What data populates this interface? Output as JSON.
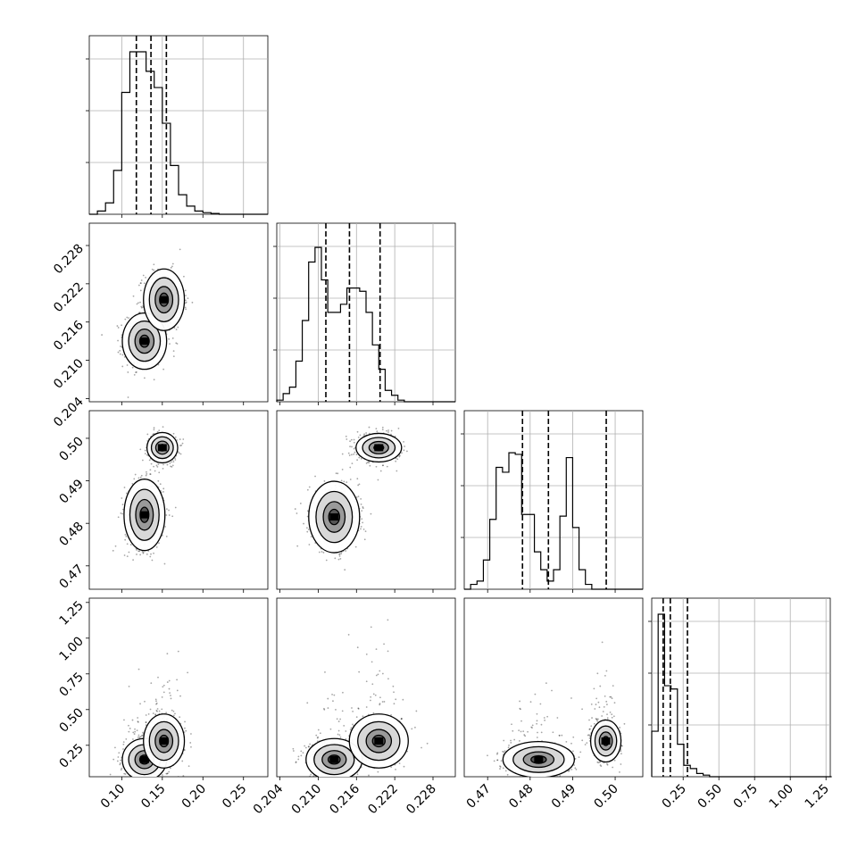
{
  "chart_data": [
    {
      "type": "histogram",
      "panel": "p1-marginal",
      "x_range": [
        0.06,
        0.28
      ],
      "grid": true,
      "bin_edges_start": 0.06,
      "bin_width": 0.01,
      "counts": [
        0.0,
        0.02,
        0.07,
        0.27,
        0.75,
        1.0,
        1.0,
        0.88,
        0.78,
        0.56,
        0.3,
        0.12,
        0.05,
        0.02,
        0.01,
        0.005,
        0.0,
        0.0,
        0.0,
        0.0,
        0.0,
        0.0
      ],
      "quantile_lines": [
        0.118,
        0.136,
        0.155
      ],
      "x_ticks": [
        0.1,
        0.15,
        0.2,
        0.25
      ],
      "x_tick_labels": [
        "0.10",
        "0.15",
        "0.20",
        "0.25"
      ]
    },
    {
      "type": "histogram",
      "panel": "p2-marginal",
      "x_range": [
        0.2035,
        0.2315
      ],
      "grid": true,
      "bin_edges_start": 0.2035,
      "bin_width": 0.001,
      "counts": [
        0.01,
        0.05,
        0.09,
        0.25,
        0.5,
        0.86,
        0.95,
        0.75,
        0.55,
        0.55,
        0.6,
        0.7,
        0.7,
        0.68,
        0.55,
        0.35,
        0.2,
        0.07,
        0.04,
        0.01,
        0.0,
        0.0,
        0.0,
        0.0,
        0.0,
        0.0,
        0.0,
        0.0
      ],
      "quantile_lines": [
        0.2112,
        0.2149,
        0.2197
      ],
      "x_ticks": [
        0.204,
        0.21,
        0.216,
        0.222,
        0.228
      ],
      "x_tick_labels": [
        "0.204",
        "0.210",
        "0.216",
        "0.222",
        "0.228"
      ]
    },
    {
      "type": "histogram",
      "panel": "p3-marginal",
      "x_range": [
        0.4645,
        0.5065
      ],
      "grid": true,
      "bin_edges_start": 0.4645,
      "bin_width": 0.0015,
      "counts": [
        0.0,
        0.03,
        0.05,
        0.18,
        0.43,
        0.75,
        0.72,
        0.84,
        0.83,
        0.46,
        0.46,
        0.23,
        0.12,
        0.05,
        0.12,
        0.45,
        0.81,
        0.38,
        0.12,
        0.03,
        0.0,
        0.0,
        0.0,
        0.0,
        0.0,
        0.0,
        0.0,
        0.0
      ],
      "quantile_lines": [
        0.4782,
        0.4843,
        0.4979
      ],
      "x_ticks": [
        0.47,
        0.48,
        0.49,
        0.5
      ],
      "x_tick_labels": [
        "0.47",
        "0.48",
        "0.49",
        "0.50"
      ],
      "y_ticks": [
        0.47,
        0.48,
        0.49,
        0.5
      ],
      "y_tick_labels": [
        "0.47",
        "0.48",
        "0.49",
        "0.50"
      ]
    },
    {
      "type": "histogram",
      "panel": "p4-marginal",
      "x_range": [
        0.03,
        1.28
      ],
      "grid": true,
      "bin_edges_start": 0.03,
      "bin_width": 0.045,
      "counts": [
        0.28,
        1.0,
        0.56,
        0.54,
        0.2,
        0.07,
        0.05,
        0.02,
        0.01,
        0.0,
        0.0,
        0.0,
        0.0,
        0.0,
        0.0,
        0.0,
        0.0,
        0.0,
        0.0,
        0.0,
        0.0,
        0.0,
        0.0,
        0.0,
        0.0,
        0.0,
        0.0,
        0.0
      ],
      "quantile_lines": [
        0.11,
        0.16,
        0.28
      ],
      "x_ticks": [
        0.25,
        0.5,
        0.75,
        1.0,
        1.25
      ],
      "x_tick_labels": [
        "0.25",
        "0.50",
        "0.75",
        "1.00",
        "1.25"
      ],
      "y_ticks": [
        0.25,
        0.5,
        0.75,
        1.0,
        1.25
      ],
      "y_tick_labels": [
        "0.25",
        "0.50",
        "0.75",
        "1.00",
        "1.25"
      ]
    },
    {
      "type": "scatter-density",
      "panel": "p2-vs-p1",
      "x_range": [
        0.06,
        0.28
      ],
      "y_range": [
        0.2035,
        0.2315
      ],
      "clusters": [
        {
          "center": [
            0.128,
            0.213
          ],
          "spread": [
            0.013,
            0.0021
          ],
          "weight": 0.55
        },
        {
          "center": [
            0.152,
            0.2195
          ],
          "spread": [
            0.012,
            0.0023
          ],
          "weight": 0.45
        }
      ],
      "y_ticks": [
        0.204,
        0.21,
        0.216,
        0.222,
        0.228
      ],
      "y_tick_labels": [
        "0.204",
        "0.210",
        "0.216",
        "0.222",
        "0.228"
      ]
    },
    {
      "type": "scatter-density",
      "panel": "p3-vs-p1",
      "x_range": [
        0.06,
        0.28
      ],
      "y_range": [
        0.4645,
        0.5065
      ],
      "clusters": [
        {
          "center": [
            0.128,
            0.482
          ],
          "spread": [
            0.012,
            0.004
          ],
          "weight": 0.55
        },
        {
          "center": [
            0.15,
            0.4978
          ],
          "spread": [
            0.009,
            0.0017
          ],
          "weight": 0.45
        }
      ]
    },
    {
      "type": "scatter-density",
      "panel": "p3-vs-p2",
      "x_range": [
        0.2035,
        0.2315
      ],
      "y_range": [
        0.4645,
        0.5065
      ],
      "clusters": [
        {
          "center": [
            0.2125,
            0.4815
          ],
          "spread": [
            0.0019,
            0.004
          ],
          "weight": 0.55
        },
        {
          "center": [
            0.2195,
            0.4978
          ],
          "spread": [
            0.0017,
            0.0016
          ],
          "weight": 0.45
        }
      ]
    },
    {
      "type": "scatter-density",
      "panel": "p4-vs-p1",
      "x_range": [
        0.06,
        0.28
      ],
      "y_range": [
        0.03,
        1.28
      ],
      "clusters": [
        {
          "center": [
            0.128,
            0.15
          ],
          "spread": [
            0.013,
            0.07
          ],
          "weight": 0.55
        },
        {
          "center": [
            0.152,
            0.28
          ],
          "spread": [
            0.012,
            0.09
          ],
          "weight": 0.45
        }
      ]
    },
    {
      "type": "scatter-density",
      "panel": "p4-vs-p2",
      "x_range": [
        0.2035,
        0.2315
      ],
      "y_range": [
        0.03,
        1.28
      ],
      "clusters": [
        {
          "center": [
            0.2125,
            0.15
          ],
          "spread": [
            0.0021,
            0.07
          ],
          "weight": 0.55
        },
        {
          "center": [
            0.2195,
            0.28
          ],
          "spread": [
            0.0022,
            0.09
          ],
          "weight": 0.45
        }
      ]
    },
    {
      "type": "scatter-density",
      "panel": "p4-vs-p3",
      "x_range": [
        0.4645,
        0.5065
      ],
      "y_range": [
        0.03,
        1.28
      ],
      "clusters": [
        {
          "center": [
            0.482,
            0.15
          ],
          "spread": [
            0.004,
            0.06
          ],
          "weight": 0.55
        },
        {
          "center": [
            0.4978,
            0.28
          ],
          "spread": [
            0.0017,
            0.07
          ],
          "weight": 0.45
        }
      ]
    }
  ]
}
